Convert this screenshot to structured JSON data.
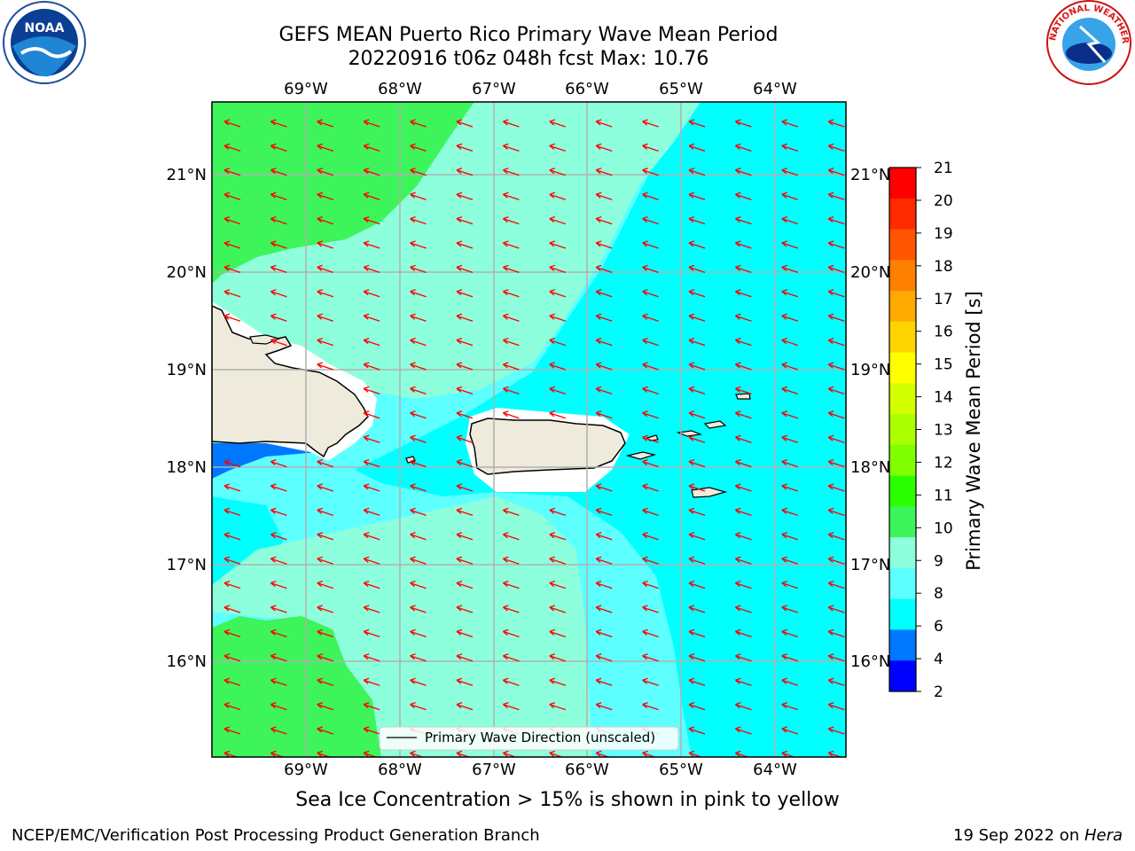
{
  "title": {
    "line1": "GEFS MEAN Puerto Rico Primary Wave Mean Period",
    "line2": "20220916 t06z 048h fcst   Max: 10.76"
  },
  "lon_labels": [
    "69°W",
    "68°W",
    "67°W",
    "66°W",
    "65°W",
    "64°W"
  ],
  "lat_labels": [
    "21°N",
    "20°N",
    "19°N",
    "18°N",
    "17°N",
    "16°N"
  ],
  "legend_label": "Primary Wave Direction (unscaled)",
  "colorbar": {
    "label": "Primary Wave Mean Period [s]",
    "ticks": [
      "21",
      "20",
      "19",
      "18",
      "17",
      "16",
      "15",
      "14",
      "13",
      "12",
      "11",
      "10",
      "9",
      "8",
      "6",
      "4",
      "2"
    ],
    "colors": [
      "#ff0000",
      "#ff2a00",
      "#ff5500",
      "#ff7f00",
      "#ffaa00",
      "#ffd400",
      "#ffff00",
      "#d4ff00",
      "#aaff00",
      "#7fff00",
      "#2aff00",
      "#3df55a",
      "#8effdc",
      "#5effff",
      "#00ffff",
      "#0077ff",
      "#0000ff"
    ]
  },
  "ice_note": "Sea Ice Concentration > 15% is shown in pink to yellow",
  "footer": {
    "left": "NCEP/EMC/Verification Post Processing Product Generation Branch",
    "right_date": "19 Sep 2022 on ",
    "right_host": "Hera"
  },
  "logos": {
    "noaa": "NOAA",
    "nws": "NATIONAL WEATHER SERVICE"
  }
}
